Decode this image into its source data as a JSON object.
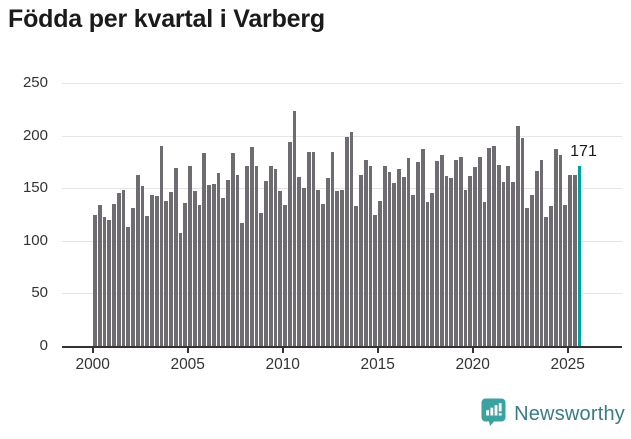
{
  "title": "Födda per kvartal i Varberg",
  "footer": {
    "brand": "Newsworthy"
  },
  "colors": {
    "title": "#1a1a1a",
    "bar": "#6e6c70",
    "highlight": "#00a29e",
    "gridline": "#e4e4e4",
    "axis": "#333333",
    "tick_label": "#333333",
    "annotation": "#1a1a1a",
    "logo_icon": "#3ba39f",
    "logo_text": "#3a7b85"
  },
  "chart_data": {
    "type": "bar",
    "title": "Födda per kvartal i Varberg",
    "x_unit": "quarter",
    "x_start": "2000-Q1",
    "x_end": "2025-Q3",
    "ylim": [
      0,
      250
    ],
    "yticks": [
      0,
      50,
      100,
      150,
      200,
      250
    ],
    "xticks": [
      "2000",
      "2005",
      "2010",
      "2015",
      "2020",
      "2025"
    ],
    "grid": "horizontal",
    "legend": "none",
    "highlight_last_bar": true,
    "annotation": {
      "text": "171",
      "bar_index": 102
    },
    "values": [
      125,
      134,
      123,
      120,
      135,
      145,
      148,
      113,
      131,
      163,
      152,
      124,
      144,
      143,
      190,
      138,
      146,
      169,
      107,
      136,
      171,
      147,
      134,
      183,
      153,
      154,
      164,
      141,
      158,
      183,
      163,
      117,
      171,
      189,
      171,
      126,
      157,
      171,
      168,
      147,
      134,
      194,
      223,
      161,
      150,
      184,
      184,
      148,
      135,
      160,
      184,
      147,
      148,
      199,
      203,
      133,
      163,
      177,
      171,
      125,
      138,
      171,
      165,
      155,
      168,
      161,
      179,
      144,
      175,
      187,
      137,
      145,
      176,
      182,
      162,
      160,
      177,
      180,
      148,
      162,
      170,
      180,
      137,
      188,
      190,
      172,
      156,
      171,
      156,
      209,
      198,
      131,
      144,
      166,
      177,
      123,
      133,
      187,
      182,
      134,
      163,
      163,
      171
    ]
  }
}
